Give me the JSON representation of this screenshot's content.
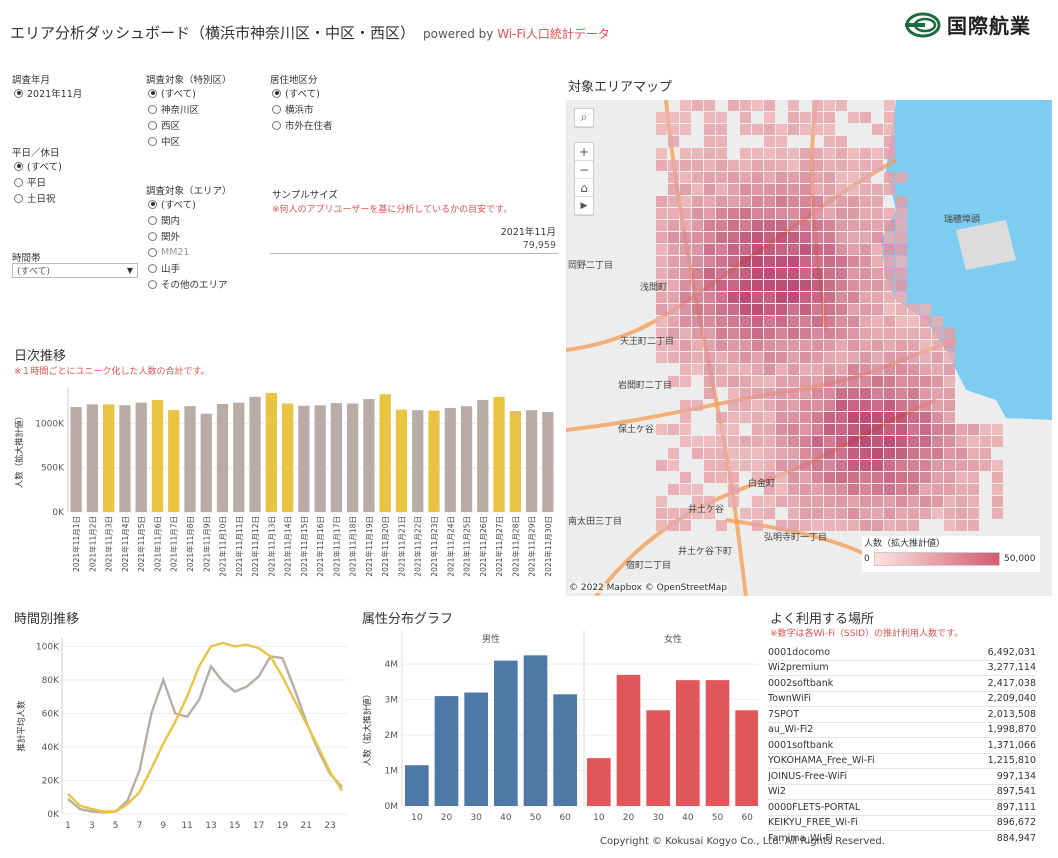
{
  "header": {
    "title": "エリア分析ダッシュボード（横浜市神奈川区・中区・西区）",
    "powered_prefix": "powered by ",
    "powered_source": "Wi-Fi人口統計データ",
    "logo_text": "国際航業"
  },
  "filters": {
    "year_month": {
      "label": "調査年月",
      "options": [
        {
          "label": "2021年11月",
          "selected": true
        }
      ]
    },
    "weekday": {
      "label": "平日／休日",
      "options": [
        {
          "label": "(すべて)",
          "selected": true
        },
        {
          "label": "平日",
          "selected": false
        },
        {
          "label": "土日祝",
          "selected": false
        }
      ]
    },
    "time_slot": {
      "label": "時間帯",
      "value": "(すべて)"
    },
    "target_ward": {
      "label": "調査対象（特別区）",
      "options": [
        {
          "label": "(すべて)",
          "selected": true
        },
        {
          "label": "神奈川区",
          "selected": false
        },
        {
          "label": "西区",
          "selected": false
        },
        {
          "label": "中区",
          "selected": false
        }
      ]
    },
    "target_area": {
      "label": "調査対象（エリア）",
      "options": [
        {
          "label": "(すべて)",
          "selected": true,
          "dim": false
        },
        {
          "label": "関内",
          "selected": false,
          "dim": false
        },
        {
          "label": "関外",
          "selected": false,
          "dim": false
        },
        {
          "label": "MM21",
          "selected": false,
          "dim": true
        },
        {
          "label": "山手",
          "selected": false,
          "dim": false
        },
        {
          "label": "その他のエリア",
          "selected": false,
          "dim": false
        }
      ]
    },
    "residence": {
      "label": "居住地区分",
      "options": [
        {
          "label": "(すべて)",
          "selected": true
        },
        {
          "label": "横浜市",
          "selected": false
        },
        {
          "label": "市外在住者",
          "selected": false
        }
      ]
    }
  },
  "sample": {
    "title": "サンプルサイズ",
    "note": "※何人のアプリユーザーを基に分析しているかの目安です。",
    "month": "2021年11月",
    "value": "79,959"
  },
  "map": {
    "title": "対象エリアマップ",
    "attribution": "© 2022 Mapbox  © OpenStreetMap",
    "legend_title": "人数（拡大推計値）",
    "legend_min": "0",
    "legend_max": "50,000",
    "place_labels": [
      "瑞穂埠頭",
      "岡野二丁目",
      "浅間町",
      "天王町二丁目",
      "岩間町二丁目",
      "保土ケ谷",
      "南太田三丁目",
      "井土ケ谷",
      "井土ケ谷下町",
      "白金町",
      "弘明寺町一丁目",
      "宿町二丁目"
    ],
    "controls": {
      "search": "search-icon",
      "zoom_in": "+",
      "zoom_out": "−",
      "home": "home-icon",
      "play": "play-icon"
    },
    "colors": {
      "water": "#7ecdf0",
      "land": "#ededed",
      "cell_low": "#f6c7c2",
      "cell_high": "#b03060"
    }
  },
  "daily": {
    "title": "日次推移",
    "note": "※１時間ごとにユニーク化した人数の合計です。",
    "chart_data": {
      "type": "bar",
      "ylabel": "人数（拡大推計値）",
      "yticks": [
        "0K",
        "500K",
        "1000K"
      ],
      "ylim": [
        0,
        1400000
      ],
      "categories": [
        "2021年11月1日",
        "2021年11月2日",
        "2021年11月3日",
        "2021年11月4日",
        "2021年11月5日",
        "2021年11月6日",
        "2021年11月7日",
        "2021年11月8日",
        "2021年11月9日",
        "2021年11月10日",
        "2021年11月11日",
        "2021年11月12日",
        "2021年11月13日",
        "2021年11月14日",
        "2021年11月15日",
        "2021年11月16日",
        "2021年11月17日",
        "2021年11月18日",
        "2021年11月19日",
        "2021年11月20日",
        "2021年11月21日",
        "2021年11月22日",
        "2021年11月23日",
        "2021年11月24日",
        "2021年11月25日",
        "2021年11月26日",
        "2021年11月27日",
        "2021年11月28日",
        "2021年11月29日",
        "2021年11月30日"
      ],
      "values": [
        1185000,
        1215000,
        1215000,
        1205000,
        1235000,
        1265000,
        1150000,
        1195000,
        1110000,
        1220000,
        1235000,
        1300000,
        1345000,
        1225000,
        1200000,
        1205000,
        1230000,
        1225000,
        1275000,
        1330000,
        1155000,
        1150000,
        1145000,
        1175000,
        1195000,
        1265000,
        1300000,
        1140000,
        1150000,
        1130000
      ],
      "holiday_flags": [
        false,
        false,
        true,
        false,
        false,
        true,
        true,
        false,
        false,
        false,
        false,
        false,
        true,
        true,
        false,
        false,
        false,
        false,
        false,
        true,
        true,
        false,
        true,
        false,
        false,
        false,
        true,
        true,
        false,
        false
      ],
      "colors": {
        "weekday": "#b9aca7",
        "holiday": "#e9c442"
      }
    }
  },
  "hourly": {
    "title": "時間別推移",
    "chart_data": {
      "type": "line",
      "ylabel": "推計平均人数",
      "yticks": [
        "0K",
        "20K",
        "40K",
        "60K",
        "80K",
        "100K"
      ],
      "ylim": [
        0,
        105000
      ],
      "xticks": [
        "1",
        "3",
        "5",
        "7",
        "9",
        "11",
        "13",
        "15",
        "17",
        "19",
        "21",
        "23"
      ],
      "x": [
        0,
        1,
        2,
        3,
        4,
        5,
        6,
        7,
        8,
        9,
        10,
        11,
        12,
        13,
        14,
        15,
        16,
        17,
        18,
        19,
        20,
        21,
        22,
        23
      ],
      "series": [
        {
          "color": "#b9aca7",
          "values": [
            9000,
            3000,
            1500,
            1000,
            1500,
            8000,
            26000,
            60000,
            80000,
            60000,
            58000,
            68000,
            88000,
            79000,
            73000,
            76000,
            82000,
            94000,
            93000,
            75000,
            55000,
            38000,
            24000,
            16000
          ]
        },
        {
          "color": "#e9c442",
          "values": [
            12000,
            5000,
            3000,
            1500,
            1500,
            6000,
            13000,
            27000,
            42000,
            55000,
            70000,
            88000,
            100000,
            102000,
            100000,
            101000,
            99000,
            94000,
            82000,
            68000,
            54000,
            40000,
            25000,
            14000
          ]
        }
      ]
    }
  },
  "attribute": {
    "title": "属性分布グラフ",
    "chart_data": {
      "type": "bar",
      "ylabel": "人数（拡大推計値）",
      "yticks": [
        "0M",
        "1M",
        "2M",
        "3M",
        "4M"
      ],
      "ylim": [
        0,
        4400000
      ],
      "categories": [
        "10",
        "20",
        "30",
        "40",
        "50",
        "60"
      ],
      "series": [
        {
          "name": "男性",
          "color": "#4e79a7",
          "values": [
            1150000,
            3100000,
            3200000,
            4100000,
            4250000,
            3150000
          ]
        },
        {
          "name": "女性",
          "color": "#e15759",
          "values": [
            1350000,
            3700000,
            2700000,
            3550000,
            3550000,
            2700000
          ]
        }
      ]
    }
  },
  "places": {
    "title": "よく利用する場所",
    "note": "※数字は各Wi-Fi（SSID）の推計利用人数です。",
    "rows": [
      {
        "name": "0001docomo",
        "value": "6,492,031"
      },
      {
        "name": "Wi2premium",
        "value": "3,277,114"
      },
      {
        "name": "0002softbank",
        "value": "2,417,038"
      },
      {
        "name": "TownWiFi",
        "value": "2,209,040"
      },
      {
        "name": "7SPOT",
        "value": "2,013,508"
      },
      {
        "name": "au_Wi-Fi2",
        "value": "1,998,870"
      },
      {
        "name": "0001softbank",
        "value": "1,371,066"
      },
      {
        "name": "YOKOHAMA_Free_Wi-Fi",
        "value": "1,215,810"
      },
      {
        "name": "JOINUS-Free-WiFi",
        "value": "997,134"
      },
      {
        "name": "Wi2",
        "value": "897,541"
      },
      {
        "name": "0000FLETS-PORTAL",
        "value": "897,111"
      },
      {
        "name": "KEIKYU_FREE_Wi-Fi",
        "value": "896,672"
      },
      {
        "name": "Famima_Wi-Fi",
        "value": "884,947"
      }
    ]
  },
  "footer": {
    "copyright": "Copyright © Kokusai Kogyo Co., Ltd. All Rights Reserved."
  }
}
